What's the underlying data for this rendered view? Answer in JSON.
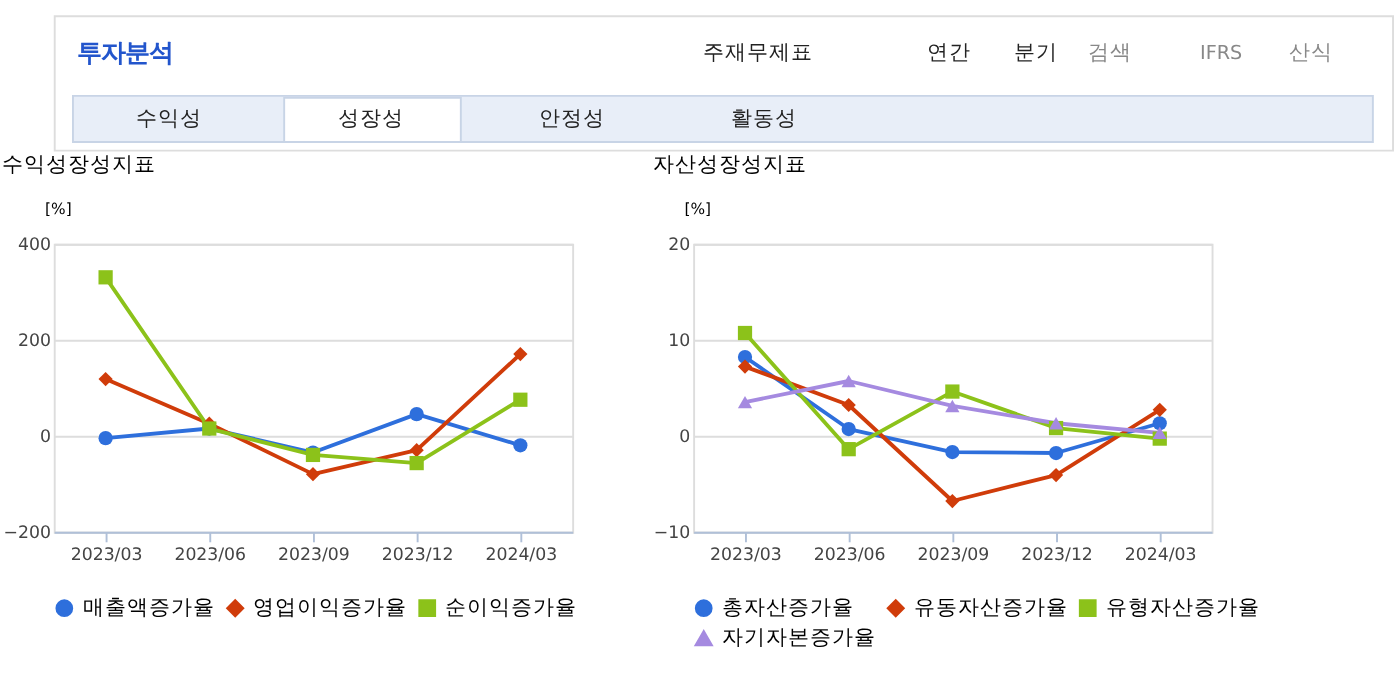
{
  "chart_data": [
    {
      "type": "line",
      "title": "수익성장성지표",
      "ylabel": "[%]",
      "annotations": [
        "투자분석",
        "주재무제표",
        "연간",
        "분기",
        "검색",
        "IFRS",
        "산식",
        "수익성",
        "성장성",
        "안정성",
        "활동성"
      ],
      "categories": [
        "2023/03",
        "2023/06",
        "2023/09",
        "2023/12",
        "2024/03"
      ],
      "series": [
        {
          "name": "매출액증가율",
          "color": "#2e6fdc",
          "marker": "circle",
          "values": [
            -5,
            15,
            -35,
            45,
            -20
          ]
        },
        {
          "name": "영업이익증가율",
          "color": "#d03c0a",
          "marker": "diamond",
          "values": [
            118,
            25,
            -80,
            -30,
            170
          ]
        },
        {
          "name": "순이익증가율",
          "color": "#8cc21a",
          "marker": "square",
          "values": [
            330,
            15,
            -40,
            -57,
            75
          ]
        }
      ],
      "ylim": [
        -200,
        400
      ],
      "yticks": [
        -200,
        0,
        200,
        400
      ],
      "grid": "y",
      "legend": "bottom"
    },
    {
      "type": "line",
      "title": "자산성장성지표",
      "ylabel": "[%]",
      "categories": [
        "2023/03",
        "2023/06",
        "2023/09",
        "2023/12",
        "2024/03"
      ],
      "series": [
        {
          "name": "총자산증가율",
          "color": "#2e6fdc",
          "marker": "circle",
          "values": [
            8.2,
            0.7,
            -1.7,
            -1.8,
            1.3
          ]
        },
        {
          "name": "유동자산증가율",
          "color": "#d03c0a",
          "marker": "diamond",
          "values": [
            7.2,
            3.2,
            -6.8,
            -4.1,
            2.7
          ]
        },
        {
          "name": "유형자산증가율",
          "color": "#8cc21a",
          "marker": "square",
          "values": [
            10.7,
            -1.4,
            4.6,
            0.8,
            -0.3
          ]
        },
        {
          "name": "자기자본증가율",
          "color": "#a58ae0",
          "marker": "triangle",
          "values": [
            3.5,
            5.7,
            3.1,
            1.3,
            0.3
          ]
        }
      ],
      "ylim": [
        -10,
        20
      ],
      "yticks": [
        -10,
        0,
        10,
        20
      ],
      "grid": "y",
      "legend": "bottom"
    }
  ]
}
